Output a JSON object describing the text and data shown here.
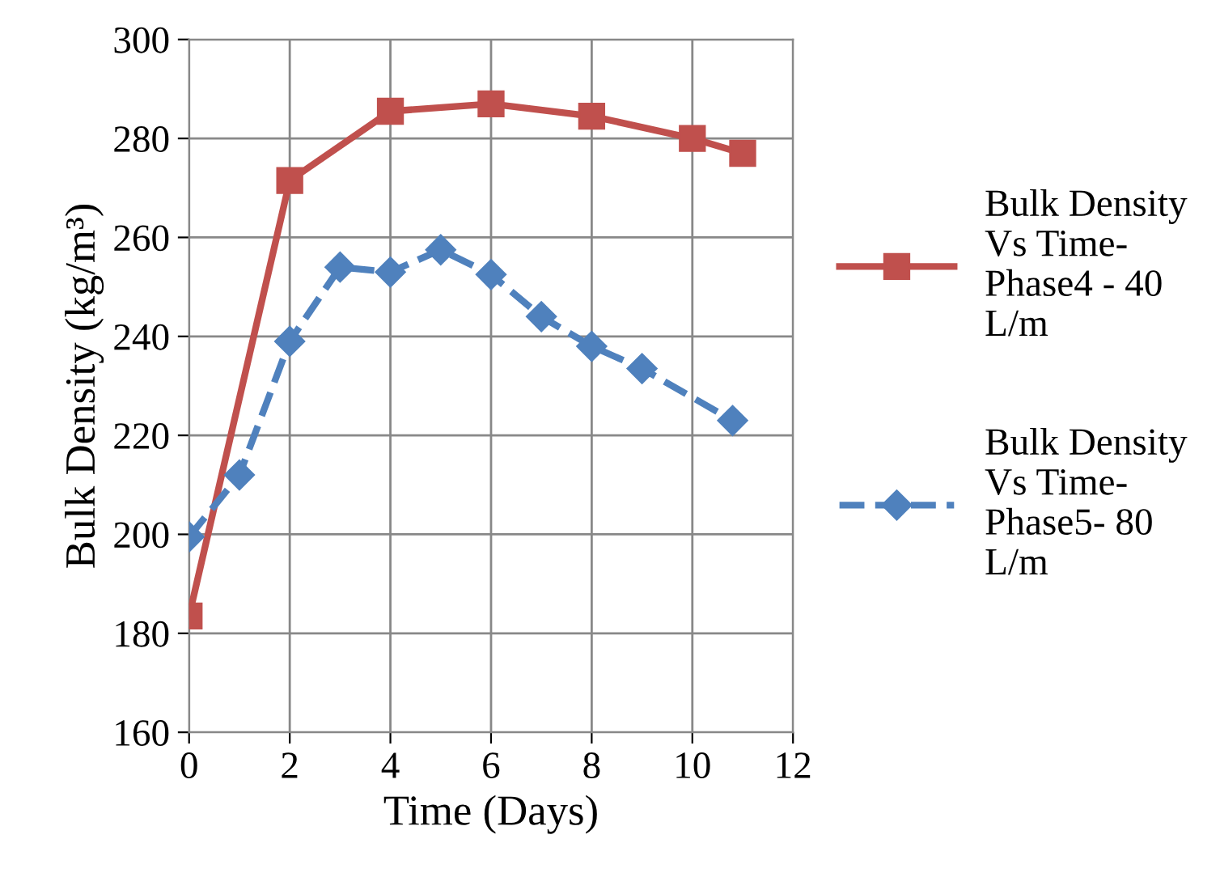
{
  "chart_data": {
    "type": "line",
    "xlabel": "Time (Days)",
    "ylabel": "Bulk Density (kg/m³)",
    "xlim": [
      0,
      12
    ],
    "xticks": [
      0,
      2,
      4,
      6,
      8,
      10,
      12
    ],
    "ylim": [
      160,
      300
    ],
    "yticks": [
      160,
      180,
      200,
      220,
      240,
      260,
      280,
      300
    ],
    "grid": true,
    "legend": "right",
    "series": [
      {
        "name": "Bulk Density\nVs Time-\nPhase4 - 40\nL/m",
        "color": "#c0504d",
        "marker": "square",
        "line_style": "solid",
        "x": [
          0,
          2,
          4,
          6,
          8,
          10,
          11
        ],
        "values": [
          183.5,
          271.5,
          285.5,
          287,
          284.5,
          280,
          277
        ]
      },
      {
        "name": "Bulk Density\nVs Time-\nPhase5- 80\nL/m",
        "color": "#4f81bd",
        "marker": "diamond",
        "line_style": "dashed",
        "x": [
          0,
          1,
          2,
          3,
          4,
          5,
          6,
          7,
          8,
          9,
          10.8
        ],
        "values": [
          199.5,
          212,
          239,
          254,
          253,
          257.5,
          252.5,
          244,
          238,
          233.5,
          223
        ]
      }
    ]
  }
}
